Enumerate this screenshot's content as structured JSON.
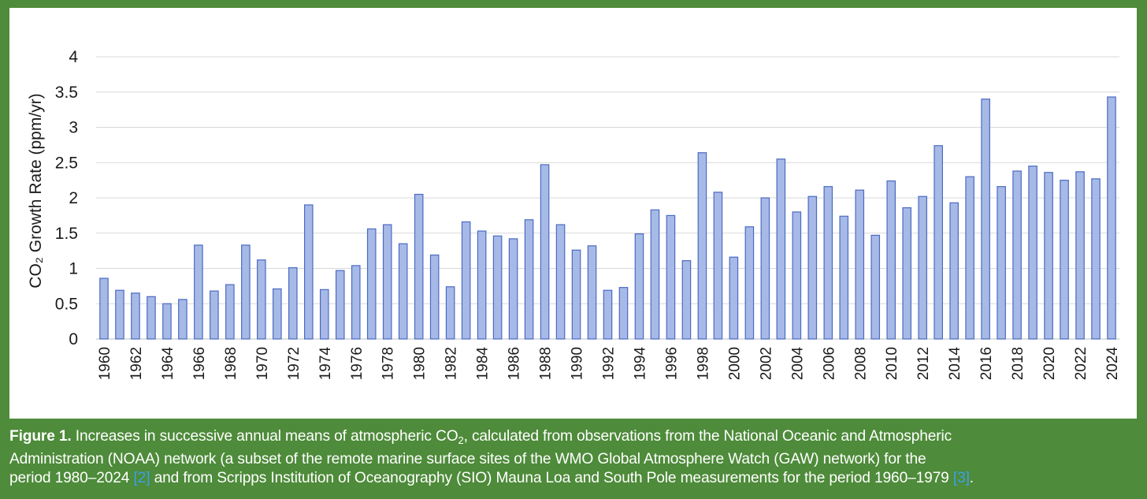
{
  "chart_data": {
    "type": "bar",
    "title": "",
    "xlabel": "",
    "ylabel": "CO₂ Growth Rate (ppm/yr)",
    "ylim": [
      0,
      4
    ],
    "yticks": [
      "0",
      "0.5",
      "1",
      "1.5",
      "2",
      "2.5",
      "3",
      "3.5",
      "4"
    ],
    "grid": true,
    "bar_color": "#a7b9e6",
    "bar_edge_color": "#4a6bc4",
    "categories": [
      1960,
      1961,
      1962,
      1963,
      1964,
      1965,
      1966,
      1967,
      1968,
      1969,
      1970,
      1971,
      1972,
      1973,
      1974,
      1975,
      1976,
      1977,
      1978,
      1979,
      1980,
      1981,
      1982,
      1983,
      1984,
      1985,
      1986,
      1987,
      1988,
      1989,
      1990,
      1991,
      1992,
      1993,
      1994,
      1995,
      1996,
      1997,
      1998,
      1999,
      2000,
      2001,
      2002,
      2003,
      2004,
      2005,
      2006,
      2007,
      2008,
      2009,
      2010,
      2011,
      2012,
      2013,
      2014,
      2015,
      2016,
      2017,
      2018,
      2019,
      2020,
      2021,
      2022,
      2023,
      2024
    ],
    "tick_labels": [
      "1960",
      "1962",
      "1964",
      "1966",
      "1968",
      "1970",
      "1972",
      "1974",
      "1976",
      "1978",
      "1980",
      "1982",
      "1984",
      "1986",
      "1988",
      "1990",
      "1992",
      "1994",
      "1996",
      "1998",
      "2000",
      "2002",
      "2004",
      "2006",
      "2008",
      "2010",
      "2012",
      "2014",
      "2016",
      "2018",
      "2020",
      "2022",
      "2024"
    ],
    "values": [
      0.86,
      0.69,
      0.65,
      0.6,
      0.5,
      0.56,
      1.33,
      0.68,
      0.77,
      1.33,
      1.12,
      0.71,
      1.01,
      1.9,
      0.7,
      0.97,
      1.04,
      1.56,
      1.62,
      1.35,
      2.05,
      1.19,
      0.74,
      1.66,
      1.53,
      1.46,
      1.42,
      1.69,
      2.47,
      1.62,
      1.26,
      1.32,
      0.69,
      0.73,
      1.49,
      1.83,
      1.75,
      1.11,
      2.64,
      2.08,
      1.16,
      1.59,
      2.0,
      2.55,
      1.8,
      2.02,
      2.16,
      1.74,
      2.11,
      1.47,
      2.24,
      1.86,
      2.02,
      2.74,
      1.93,
      2.3,
      3.4,
      2.16,
      2.38,
      2.45,
      2.36,
      2.25,
      2.37,
      2.27,
      3.43
    ]
  },
  "caption": {
    "label": "Figure 1.",
    "line1": " Increases in successive annual means of atmospheric CO",
    "sub2": "2",
    "line1_rest": ", calculated from observations from the National Oceanic and Atmospheric",
    "line2": "Administration (NOAA) network (a subset of the remote marine surface sites of the WMO Global Atmosphere Watch (GAW) network) for the",
    "line3_a": "period 1980–2024 ",
    "ref2": "[2]",
    "line3_b": " and from Scripps Institution of Oceanography (SIO) Mauna Loa and South Pole measurements for the period 1960–1979 ",
    "ref3": "[3]",
    "line3_end": "."
  }
}
